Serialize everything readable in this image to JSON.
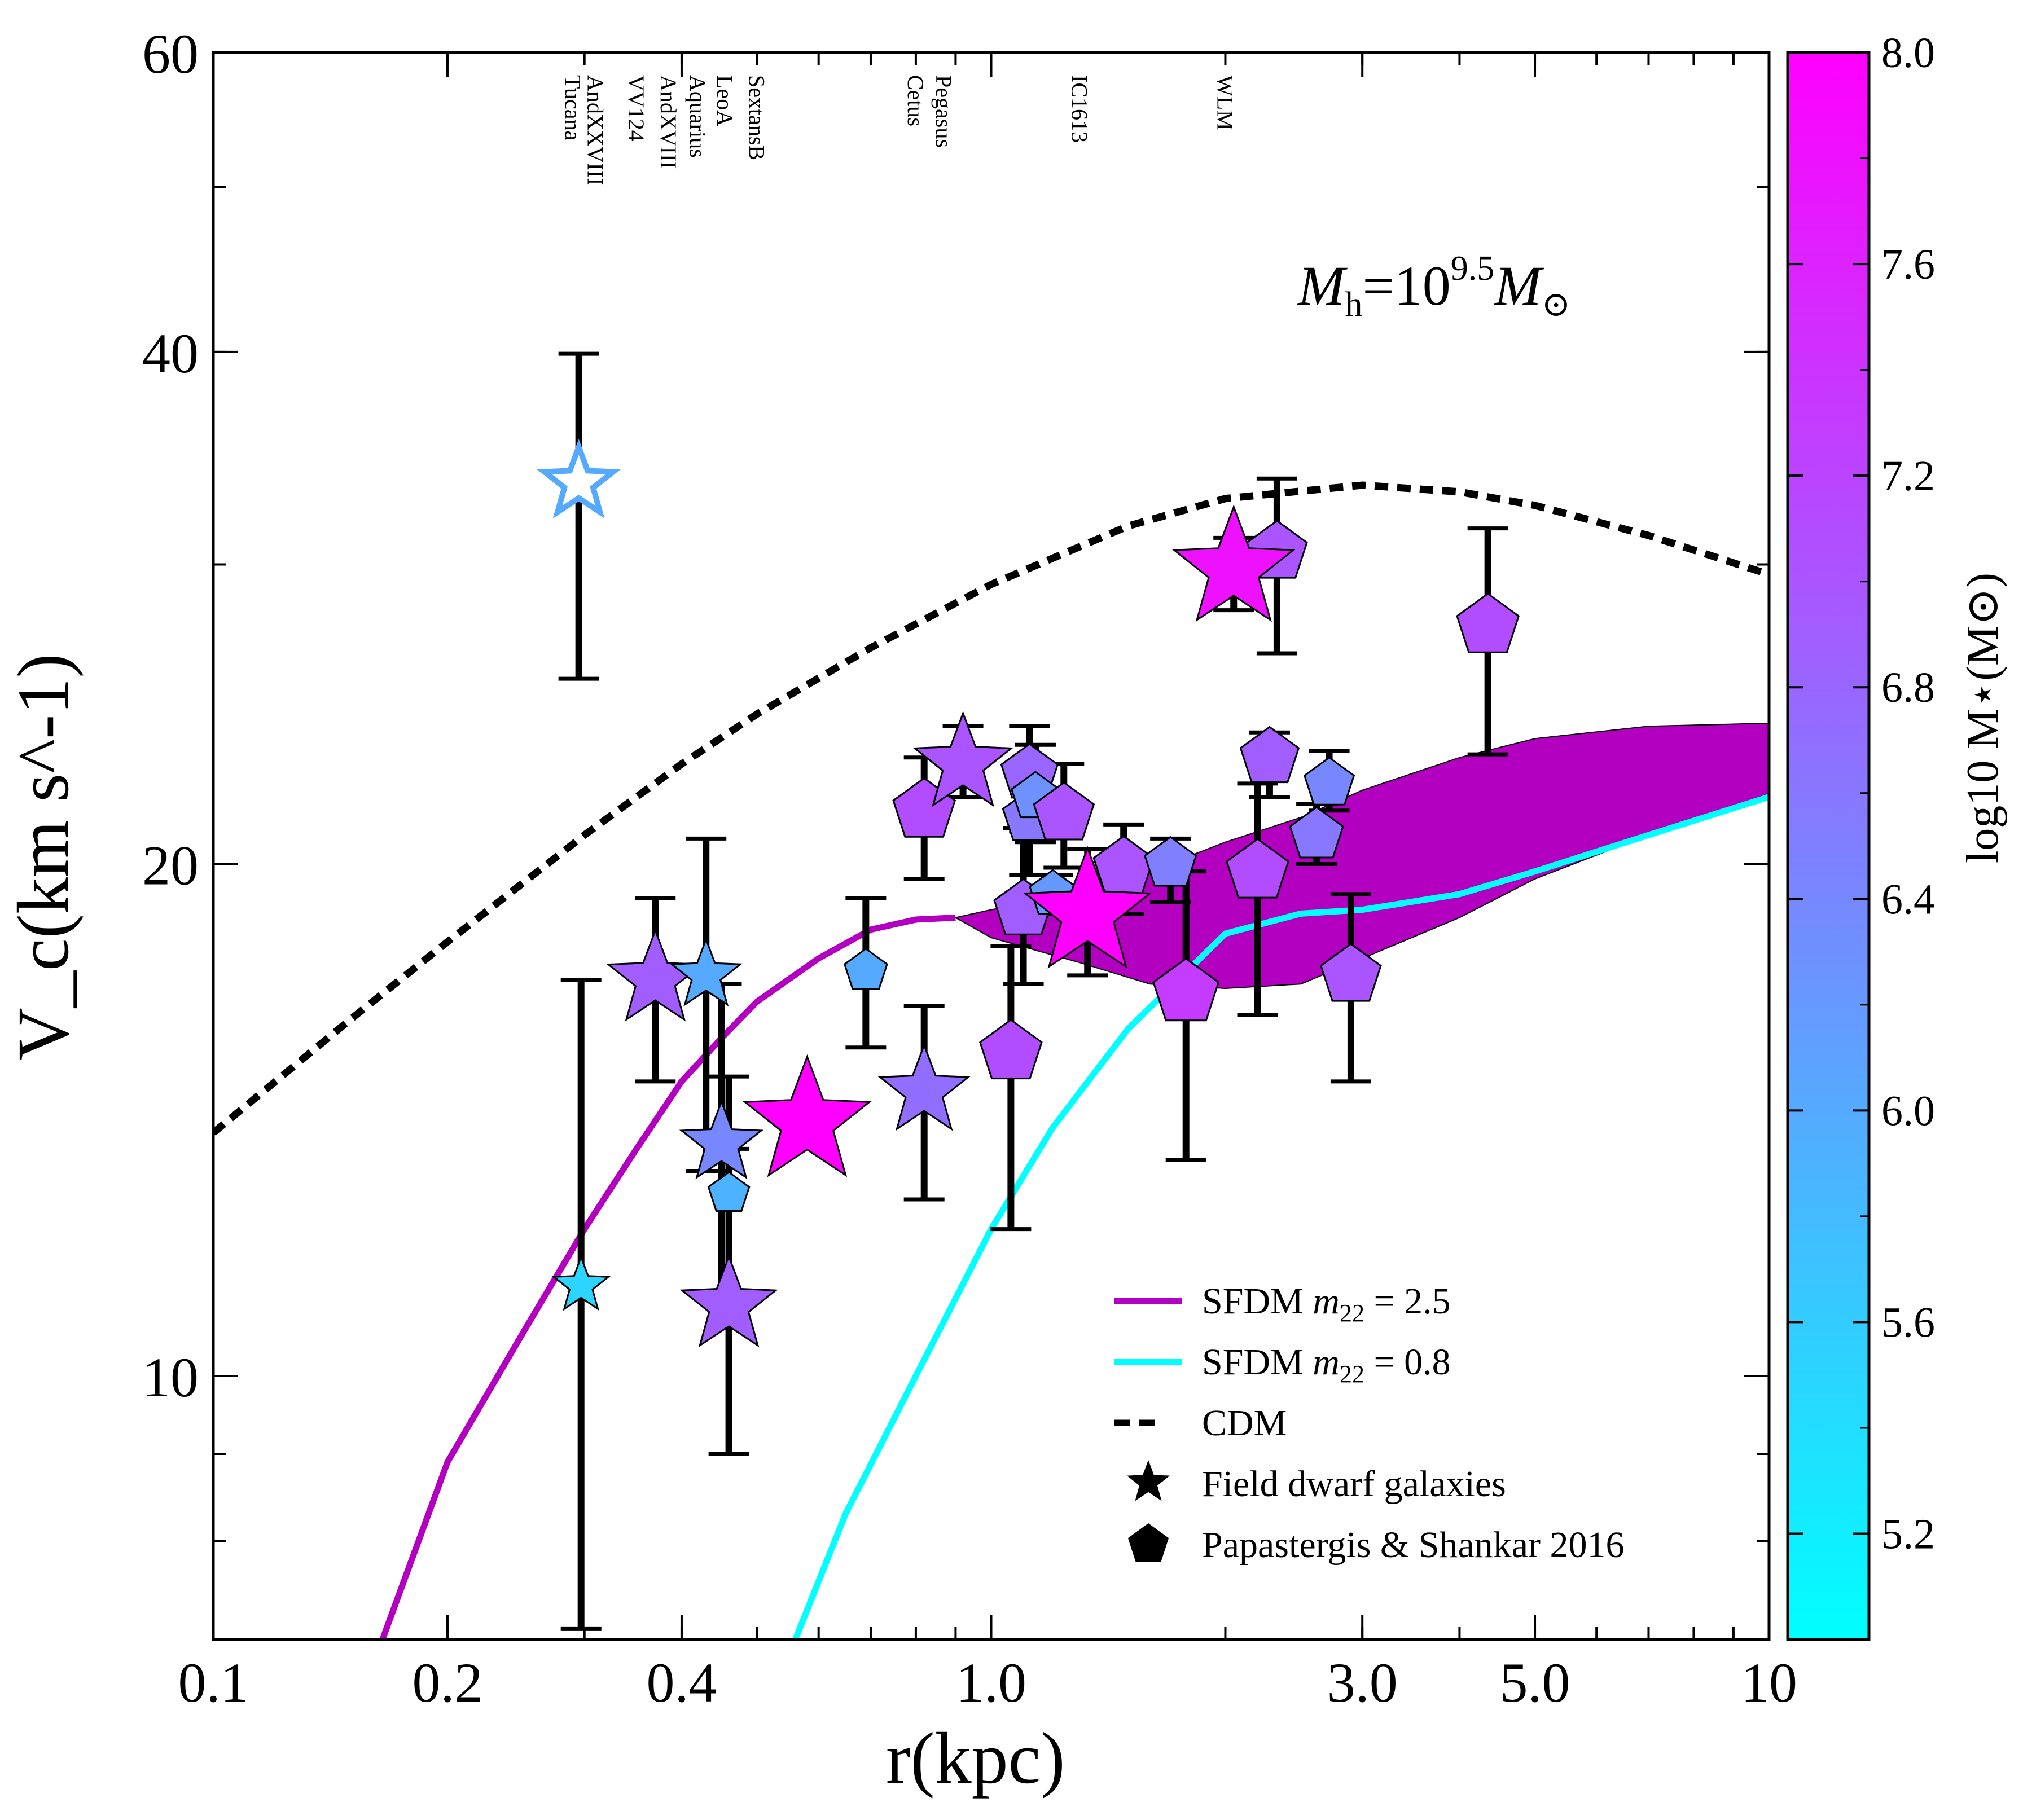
{
  "chart_data": {
    "type": "line",
    "title": "",
    "xlabel": "r(kpc)",
    "ylabel": "V_c(km s^-1)",
    "xscale": "log",
    "yscale": "log",
    "xlim": [
      0.1,
      10
    ],
    "ylim": [
      7,
      60
    ],
    "x_ticks": [
      {
        "value": 0.1,
        "label": "0.1"
      },
      {
        "value": 0.2,
        "label": "0.2"
      },
      {
        "value": 0.4,
        "label": "0.4"
      },
      {
        "value": 1.0,
        "label": "1.0"
      },
      {
        "value": 3.0,
        "label": "3.0"
      },
      {
        "value": 5.0,
        "label": "5.0"
      },
      {
        "value": 10,
        "label": "10"
      }
    ],
    "y_ticks": [
      {
        "value": 10,
        "label": "10"
      },
      {
        "value": 20,
        "label": "20"
      },
      {
        "value": 40,
        "label": "40"
      },
      {
        "value": 60,
        "label": "60"
      }
    ],
    "annotation": {
      "prefix": "M",
      "sub": "h",
      "mid": "=10",
      "sup": "9.5",
      "suffix": "M",
      "sym": "⊙"
    },
    "galaxy_labels": [
      {
        "name": "Tucana",
        "x": 0.29
      },
      {
        "name": "AndXXVIII",
        "x": 0.31
      },
      {
        "name": "VV124",
        "x": 0.35
      },
      {
        "name": "AndXVIII",
        "x": 0.385
      },
      {
        "name": "Aquarius",
        "x": 0.42
      },
      {
        "name": "LeoA",
        "x": 0.455
      },
      {
        "name": "SextansB",
        "x": 0.5
      },
      {
        "name": "Cetus",
        "x": 0.8
      },
      {
        "name": "Pegasus",
        "x": 0.87
      },
      {
        "name": "IC1613",
        "x": 1.3
      },
      {
        "name": "WLM",
        "x": 2.0
      }
    ],
    "series": [
      {
        "name": "CDM",
        "style": "dashed",
        "color": "#000000",
        "x": [
          0.1,
          0.15,
          0.2,
          0.3,
          0.4,
          0.5,
          0.7,
          1.0,
          1.5,
          2.0,
          3.0,
          4.0,
          5.0,
          7.0,
          10.0
        ],
        "y": [
          13.9,
          16.2,
          18.0,
          20.8,
          22.9,
          24.5,
          26.8,
          29.2,
          31.6,
          32.8,
          33.4,
          33.1,
          32.5,
          31.2,
          29.6
        ]
      },
      {
        "name": "SFDM m22=2.5",
        "style": "solid",
        "color": "#b300c0",
        "x": [
          0.165,
          0.2,
          0.25,
          0.3,
          0.35,
          0.4,
          0.45,
          0.5,
          0.6,
          0.7,
          0.8,
          0.9
        ],
        "y": [
          7.0,
          8.9,
          10.6,
          12.2,
          13.6,
          14.9,
          15.8,
          16.6,
          17.6,
          18.3,
          18.55,
          18.6
        ]
      },
      {
        "name": "SFDM m22=0.8",
        "style": "solid",
        "color": "#00ffff",
        "x": [
          0.56,
          0.65,
          0.8,
          1.0,
          1.2,
          1.5,
          2.0,
          2.5,
          3.0,
          4.0,
          5.0,
          7.0,
          10.0
        ],
        "y": [
          7.0,
          8.3,
          10.0,
          12.2,
          14.0,
          16.0,
          18.2,
          18.7,
          18.8,
          19.2,
          19.8,
          20.8,
          21.9
        ]
      }
    ],
    "band": {
      "name": "SFDM m22=2.5 range",
      "color": "#b300c0",
      "x": [
        0.9,
        1.0,
        1.3,
        1.6,
        2.0,
        2.5,
        3.0,
        4.0,
        5.0,
        7.0,
        10.0
      ],
      "upper": [
        18.6,
        18.8,
        19.2,
        19.8,
        20.6,
        21.3,
        22.1,
        23.1,
        23.7,
        24.1,
        24.2
      ],
      "lower": [
        18.6,
        18.1,
        17.5,
        17.0,
        16.9,
        17.0,
        17.6,
        18.6,
        19.6,
        20.8,
        21.9
      ]
    },
    "field_dwarfs": [
      {
        "x": 0.295,
        "y": 33.5,
        "err_lo": 7.8,
        "err_hi": 6.4,
        "logm": 6.0,
        "hollow": true
      },
      {
        "x": 0.297,
        "y": 11.3,
        "err_lo": 4.2,
        "err_hi": 5.8,
        "logm": 5.5
      },
      {
        "x": 0.37,
        "y": 17.1,
        "err_lo": 2.2,
        "err_hi": 2.0,
        "logm": 6.9
      },
      {
        "x": 0.43,
        "y": 17.2,
        "err_lo": 4.0,
        "err_hi": 3.5,
        "logm": 6.0
      },
      {
        "x": 0.45,
        "y": 13.7,
        "err_lo": 2.5,
        "err_hi": 3.3,
        "logm": 6.4
      },
      {
        "x": 0.46,
        "y": 11.0,
        "err_lo": 2.0,
        "err_hi": 2.6,
        "logm": 6.9
      },
      {
        "x": 0.58,
        "y": 14.1,
        "err_lo": 0,
        "err_hi": 0,
        "logm": 8.0
      },
      {
        "x": 0.82,
        "y": 14.7,
        "err_lo": 2.0,
        "err_hi": 1.8,
        "logm": 6.7
      },
      {
        "x": 0.92,
        "y": 22.9,
        "err_lo": 1.0,
        "err_hi": 1.2,
        "logm": 7.0
      },
      {
        "x": 1.33,
        "y": 18.7,
        "err_lo": 1.5,
        "err_hi": 1.7,
        "logm": 8.0
      },
      {
        "x": 2.05,
        "y": 29.8,
        "err_lo": 1.6,
        "err_hi": 1.3,
        "logm": 7.8
      }
    ],
    "papastergis_shankar_2016": [
      {
        "x": 0.46,
        "y": 12.8,
        "err_lo": 2.1,
        "err_hi": 2.2,
        "logm": 5.9
      },
      {
        "x": 0.69,
        "y": 17.3,
        "err_lo": 1.7,
        "err_hi": 1.8,
        "logm": 6.0
      },
      {
        "x": 0.82,
        "y": 21.5,
        "err_lo": 1.9,
        "err_hi": 1.6,
        "logm": 7.1
      },
      {
        "x": 1.06,
        "y": 15.5,
        "err_lo": 3.3,
        "err_hi": 2.4,
        "logm": 7.1
      },
      {
        "x": 1.1,
        "y": 18.8,
        "err_lo": 1.8,
        "err_hi": 2.2,
        "logm": 6.9
      },
      {
        "x": 1.12,
        "y": 22.6,
        "err_lo": 1.7,
        "err_hi": 1.5,
        "logm": 6.8
      },
      {
        "x": 1.12,
        "y": 21.3,
        "err_lo": 1.6,
        "err_hi": 1.3,
        "logm": 6.6
      },
      {
        "x": 1.14,
        "y": 21.9,
        "err_lo": 1.3,
        "err_hi": 1.6,
        "logm": 6.3
      },
      {
        "x": 1.2,
        "y": 19.2,
        "err_lo": 0.5,
        "err_hi": 0.5,
        "logm": 6.2
      },
      {
        "x": 1.24,
        "y": 21.4,
        "err_lo": 1.5,
        "err_hi": 1.5,
        "logm": 7.0
      },
      {
        "x": 1.48,
        "y": 19.9,
        "err_lo": 1.2,
        "err_hi": 1.2,
        "logm": 7.0
      },
      {
        "x": 1.7,
        "y": 20.0,
        "err_lo": 1.0,
        "err_hi": 0.7,
        "logm": 6.5
      },
      {
        "x": 1.78,
        "y": 16.8,
        "err_lo": 3.4,
        "err_hi": 3.0,
        "logm": 7.3
      },
      {
        "x": 2.2,
        "y": 19.8,
        "err_lo": 3.5,
        "err_hi": 2.5,
        "logm": 7.1
      },
      {
        "x": 2.28,
        "y": 23.1,
        "err_lo": 1.2,
        "err_hi": 0.8,
        "logm": 6.9
      },
      {
        "x": 2.33,
        "y": 30.5,
        "err_lo": 3.9,
        "err_hi": 3.2,
        "logm": 7.0
      },
      {
        "x": 2.62,
        "y": 20.8,
        "err_lo": 0.8,
        "err_hi": 0.9,
        "logm": 6.6
      },
      {
        "x": 2.72,
        "y": 22.3,
        "err_lo": 0.8,
        "err_hi": 1.0,
        "logm": 6.4
      },
      {
        "x": 2.9,
        "y": 17.2,
        "err_lo": 2.3,
        "err_hi": 2.0,
        "logm": 7.0
      },
      {
        "x": 4.35,
        "y": 27.6,
        "err_lo": 4.4,
        "err_hi": 3.9,
        "logm": 7.1
      }
    ],
    "legend": [
      {
        "label": "SFDM",
        "math": "m",
        "sub": "22",
        "value": "= 2.5",
        "kind": "line",
        "color": "#b300c0"
      },
      {
        "label": "SFDM",
        "math": "m",
        "sub": "22",
        "value": "= 0.8",
        "kind": "line",
        "color": "#00ffff"
      },
      {
        "label": "CDM",
        "kind": "dashed",
        "color": "#000000"
      },
      {
        "label": "Field dwarf galaxies",
        "kind": "star",
        "color": "#000000"
      },
      {
        "label": "Papastergis & Shankar 2016",
        "kind": "pentagon",
        "color": "#000000"
      }
    ],
    "legend_placement": "lower-right",
    "colorbar": {
      "label": "log10 M⋆(M⊙)",
      "min": 5.0,
      "max": 8.0,
      "colors": [
        "#00ffff",
        "#ff00ff"
      ],
      "ticks": [
        {
          "value": 5.2,
          "label": "5.2"
        },
        {
          "value": 5.6,
          "label": "5.6"
        },
        {
          "value": 6.0,
          "label": "6.0"
        },
        {
          "value": 6.4,
          "label": "6.4"
        },
        {
          "value": 6.8,
          "label": "6.8"
        },
        {
          "value": 7.2,
          "label": "7.2"
        },
        {
          "value": 7.6,
          "label": "7.6"
        },
        {
          "value": 8.0,
          "label": "8.0"
        }
      ]
    }
  }
}
